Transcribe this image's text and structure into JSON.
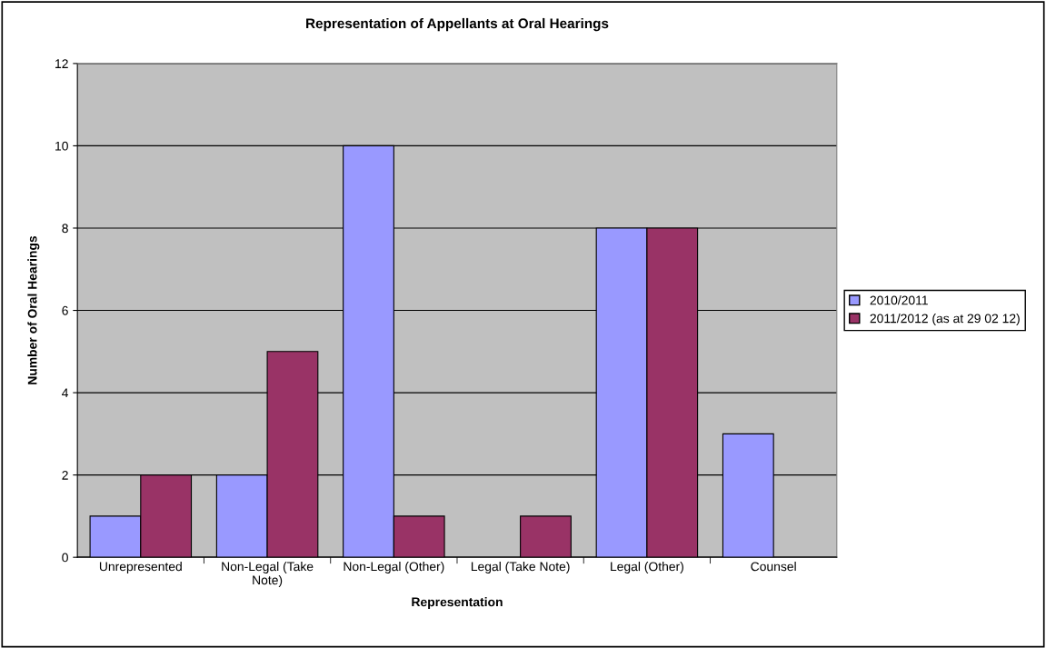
{
  "chart_data": {
    "type": "bar",
    "title": "Representation of Appellants at Oral Hearings",
    "xlabel": "Representation",
    "ylabel": "Number of Oral Hearings",
    "categories": [
      "Unrepresented",
      "Non-Legal (Take Note)",
      "Non-Legal (Other)",
      "Legal (Take Note)",
      "Legal (Other)",
      "Counsel"
    ],
    "series": [
      {
        "name": "2010/2011",
        "color": "#9999ff",
        "values": [
          1,
          2,
          10,
          null,
          8,
          3
        ]
      },
      {
        "name": "2011/2012 (as at 29 02 12)",
        "color": "#993366",
        "values": [
          2,
          5,
          1,
          1,
          8,
          null
        ]
      }
    ],
    "ylim": [
      0,
      12
    ],
    "yticks": [
      0,
      2,
      4,
      6,
      8,
      10,
      12
    ],
    "grid": "y",
    "legend": "right"
  }
}
